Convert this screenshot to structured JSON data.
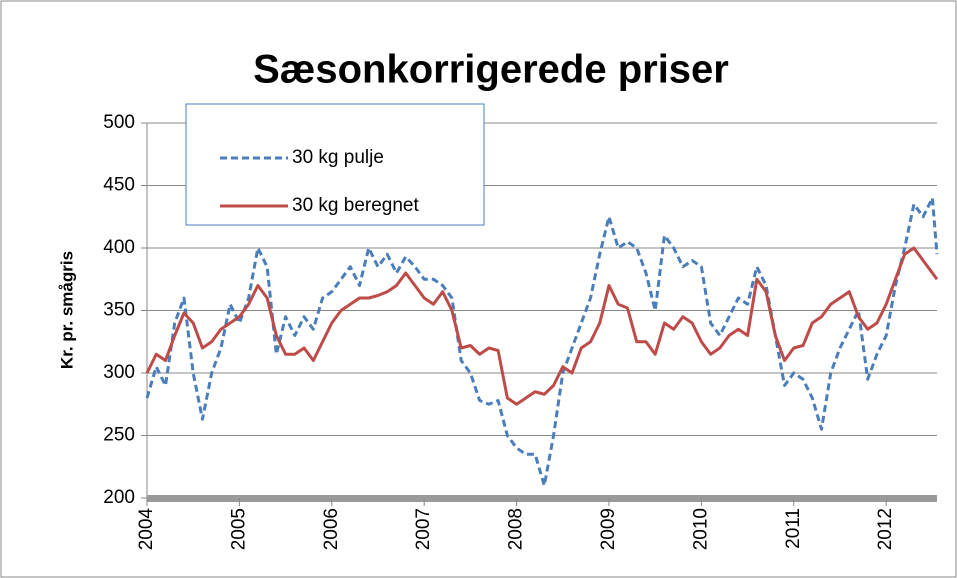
{
  "chart_data": {
    "type": "line",
    "title": "Sæsonkorrigerede priser",
    "y_label": "Kr. pr.  smågris",
    "x": [
      2004.0,
      2004.1,
      2004.2,
      2004.3,
      2004.4,
      2004.5,
      2004.6,
      2004.7,
      2004.8,
      2004.9,
      2005.0,
      2005.1,
      2005.2,
      2005.3,
      2005.4,
      2005.5,
      2005.6,
      2005.7,
      2005.8,
      2005.9,
      2006.0,
      2006.1,
      2006.2,
      2006.3,
      2006.4,
      2006.5,
      2006.6,
      2006.7,
      2006.8,
      2006.9,
      2007.0,
      2007.1,
      2007.2,
      2007.3,
      2007.4,
      2007.5,
      2007.6,
      2007.7,
      2007.8,
      2007.9,
      2008.0,
      2008.1,
      2008.2,
      2008.3,
      2008.4,
      2008.5,
      2008.6,
      2008.7,
      2008.8,
      2008.9,
      2009.0,
      2009.1,
      2009.2,
      2009.3,
      2009.4,
      2009.5,
      2009.6,
      2009.7,
      2009.8,
      2009.9,
      2010.0,
      2010.1,
      2010.2,
      2010.3,
      2010.4,
      2010.5,
      2010.6,
      2010.7,
      2010.8,
      2010.9,
      2011.0,
      2011.1,
      2011.2,
      2011.3,
      2011.4,
      2011.5,
      2011.6,
      2011.7,
      2011.8,
      2011.9,
      2012.0,
      2012.1,
      2012.2,
      2012.3,
      2012.4,
      2012.5,
      2012.55
    ],
    "series": [
      {
        "name": "30 kg pulje",
        "color": "#4a7ebb",
        "dash": true,
        "values": [
          280,
          305,
          290,
          340,
          360,
          300,
          263,
          300,
          320,
          355,
          340,
          360,
          400,
          385,
          315,
          345,
          330,
          345,
          335,
          360,
          365,
          375,
          385,
          370,
          400,
          385,
          395,
          380,
          393,
          385,
          375,
          375,
          370,
          360,
          310,
          300,
          278,
          275,
          278,
          250,
          240,
          235,
          235,
          210,
          250,
          300,
          320,
          340,
          360,
          395,
          425,
          400,
          405,
          400,
          380,
          350,
          410,
          400,
          385,
          390,
          385,
          340,
          330,
          345,
          360,
          355,
          385,
          370,
          330,
          290,
          300,
          295,
          280,
          255,
          300,
          320,
          335,
          350,
          295,
          315,
          330,
          370,
          400,
          435,
          425,
          440,
          395
        ]
      },
      {
        "name": "30 kg beregnet",
        "color": "#be4b48",
        "dash": false,
        "values": [
          300,
          315,
          310,
          330,
          348,
          340,
          320,
          325,
          335,
          340,
          345,
          355,
          370,
          360,
          330,
          315,
          315,
          320,
          310,
          325,
          340,
          350,
          355,
          360,
          360,
          362,
          365,
          370,
          380,
          370,
          360,
          355,
          365,
          350,
          320,
          322,
          315,
          320,
          318,
          280,
          275,
          280,
          285,
          283,
          290,
          305,
          300,
          320,
          325,
          340,
          370,
          355,
          352,
          325,
          325,
          315,
          340,
          335,
          345,
          340,
          325,
          315,
          320,
          330,
          335,
          330,
          375,
          365,
          330,
          310,
          320,
          322,
          340,
          345,
          355,
          360,
          365,
          345,
          335,
          340,
          355,
          375,
          395,
          400,
          390,
          380,
          375
        ]
      }
    ],
    "xlim": [
      2004,
      2012.55
    ],
    "xticks": [
      2004,
      2005,
      2006,
      2007,
      2008,
      2009,
      2010,
      2011,
      2012
    ],
    "ylim": [
      200,
      500
    ],
    "yticks": [
      200,
      250,
      300,
      350,
      400,
      450,
      500
    ],
    "grid": true
  }
}
